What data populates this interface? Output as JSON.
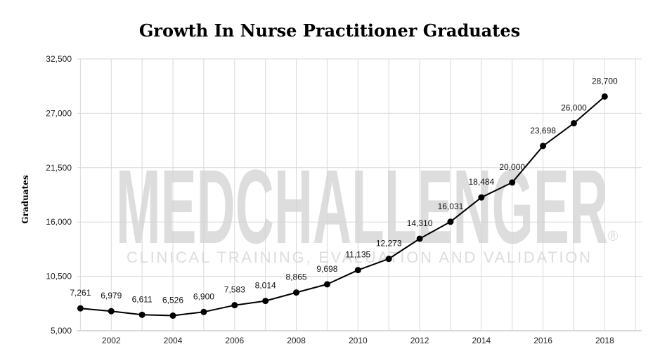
{
  "chart_data": {
    "type": "line",
    "title": "Growth In Nurse Practitioner Graduates",
    "xlabel": "",
    "ylabel": "Graduates",
    "x": [
      2001,
      2002,
      2003,
      2004,
      2005,
      2006,
      2007,
      2008,
      2009,
      2010,
      2011,
      2012,
      2013,
      2014,
      2015,
      2016,
      2017,
      2018
    ],
    "values": [
      7261,
      6979,
      6611,
      6526,
      6900,
      7583,
      8014,
      8865,
      9698,
      11135,
      12273,
      14310,
      16031,
      18484,
      20000,
      23698,
      26000,
      28700
    ],
    "data_labels": [
      "7,261",
      "6,979",
      "6,611",
      "6,526",
      "6,900",
      "7,583",
      "8,014",
      "8,865",
      "9,698",
      "11,135",
      "12,273",
      "14,310",
      "16,031",
      "18,484",
      "20,000",
      "23,698",
      "26,000",
      "28,700"
    ],
    "xlim": [
      2000.9,
      2019.2
    ],
    "ylim": [
      5000,
      32500
    ],
    "y_ticks": [
      5000,
      10500,
      16000,
      21500,
      27000,
      32500
    ],
    "y_tick_labels": [
      "5,000",
      "10,500",
      "16,000",
      "21,500",
      "27,000",
      "32,500"
    ],
    "x_ticks": [
      2002,
      2004,
      2006,
      2008,
      2010,
      2012,
      2014,
      2016,
      2018
    ],
    "x_tick_labels": [
      "2002",
      "2004",
      "2006",
      "2008",
      "2010",
      "2012",
      "2014",
      "2016",
      "2018"
    ],
    "grid": true,
    "legend": "none",
    "line_color": "#000000",
    "grid_color": "#d9d9d9"
  },
  "watermark": {
    "main": "MEDCHALLENGER",
    "tagline": "CLINICAL TRAINING, EVALUATION AND VALIDATION",
    "mark": "®"
  }
}
